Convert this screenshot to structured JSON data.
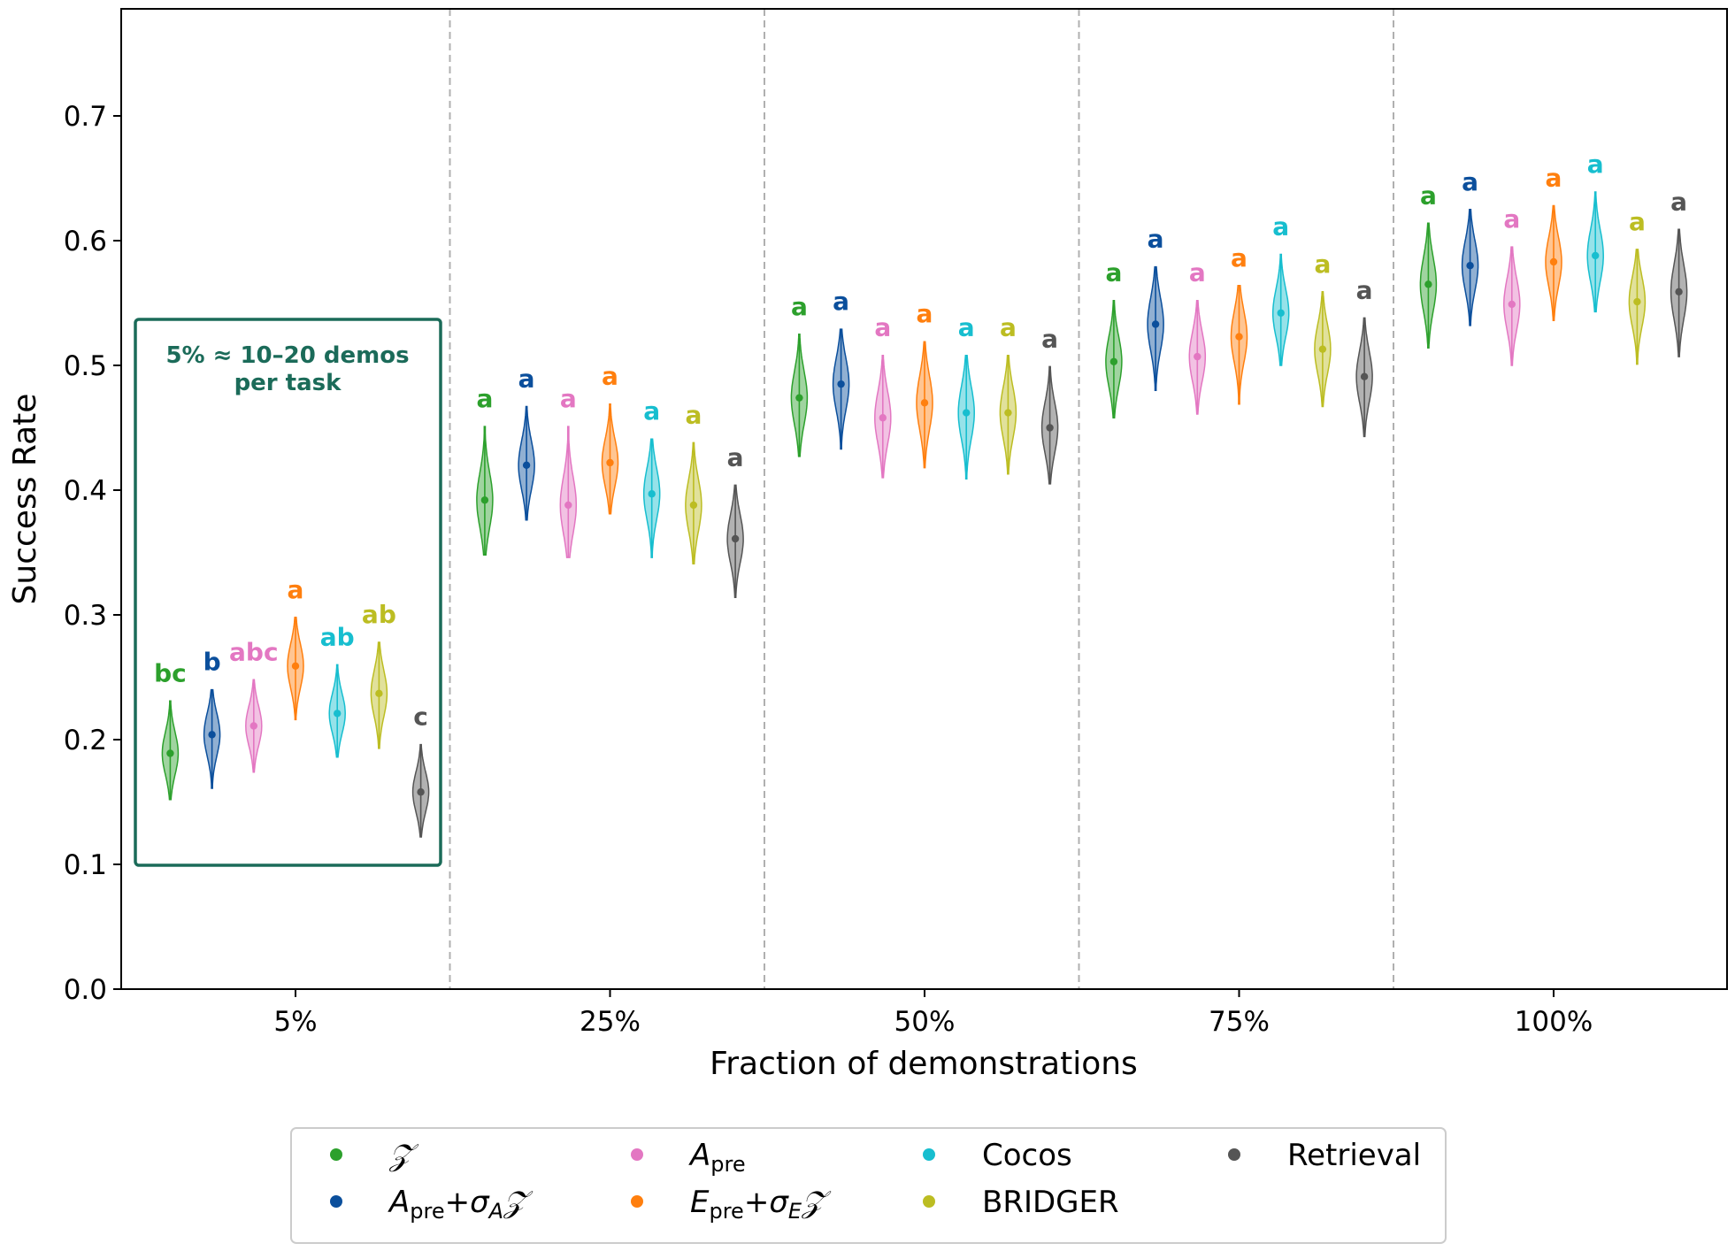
{
  "chart_data": {
    "type": "violin",
    "xlabel": "Fraction of demonstrations",
    "ylabel": "Success Rate",
    "ylim": [
      0.0,
      0.78
    ],
    "yticks": [
      "0.0",
      "0.1",
      "0.2",
      "0.3",
      "0.4",
      "0.5",
      "0.6",
      "0.7"
    ],
    "categories": [
      "5%",
      "25%",
      "50%",
      "75%",
      "100%"
    ],
    "grid": false,
    "legend_position": "bottom-center",
    "annotation": {
      "line1": "5% ≈ 10–20 demos",
      "line2": "per task",
      "color": "#1b6b59",
      "category": "5%"
    },
    "series": [
      {
        "name": "𝒵",
        "key": "z",
        "color": "#2ca02c",
        "median": [
          0.189,
          0.392,
          0.474,
          0.503,
          0.565
        ],
        "low": [
          0.152,
          0.348,
          0.427,
          0.458,
          0.514
        ],
        "high": [
          0.231,
          0.451,
          0.525,
          0.552,
          0.614
        ],
        "letters": [
          "bc",
          "a",
          "a",
          "a",
          "a"
        ]
      },
      {
        "name": "A_pre+σ_A𝒵",
        "key": "apre_sigma",
        "color": "#0b4f9c",
        "median": [
          0.204,
          0.42,
          0.485,
          0.533,
          0.58
        ],
        "low": [
          0.161,
          0.376,
          0.433,
          0.48,
          0.532
        ],
        "high": [
          0.24,
          0.467,
          0.529,
          0.579,
          0.625
        ],
        "letters": [
          "b",
          "a",
          "a",
          "a",
          "a"
        ]
      },
      {
        "name": "A_pre",
        "key": "apre",
        "color": "#e377c2",
        "median": [
          0.211,
          0.388,
          0.458,
          0.507,
          0.549
        ],
        "low": [
          0.174,
          0.346,
          0.41,
          0.461,
          0.5
        ],
        "high": [
          0.248,
          0.451,
          0.508,
          0.552,
          0.595
        ],
        "letters": [
          "abc",
          "a",
          "a",
          "a",
          "a"
        ]
      },
      {
        "name": "E_pre+σ_E𝒵",
        "key": "epre_sigma",
        "color": "#ff7f0e",
        "median": [
          0.259,
          0.422,
          0.47,
          0.523,
          0.583
        ],
        "low": [
          0.216,
          0.381,
          0.418,
          0.469,
          0.536
        ],
        "high": [
          0.298,
          0.469,
          0.519,
          0.564,
          0.628
        ],
        "letters": [
          "a",
          "a",
          "a",
          "a",
          "a"
        ]
      },
      {
        "name": "Cocos",
        "key": "cocos",
        "color": "#17becf",
        "median": [
          0.221,
          0.397,
          0.462,
          0.542,
          0.588
        ],
        "low": [
          0.186,
          0.346,
          0.409,
          0.5,
          0.543
        ],
        "high": [
          0.26,
          0.441,
          0.508,
          0.589,
          0.639
        ],
        "letters": [
          "ab",
          "a",
          "a",
          "a",
          "a"
        ]
      },
      {
        "name": "BRIDGER",
        "key": "bridger",
        "color": "#bcbd22",
        "median": [
          0.237,
          0.388,
          0.462,
          0.513,
          0.551
        ],
        "low": [
          0.193,
          0.341,
          0.413,
          0.467,
          0.501
        ],
        "high": [
          0.278,
          0.438,
          0.508,
          0.559,
          0.593
        ],
        "letters": [
          "ab",
          "a",
          "a",
          "a",
          "a"
        ]
      },
      {
        "name": "Retrieval",
        "key": "retrieval",
        "color": "#555555",
        "median": [
          0.158,
          0.361,
          0.45,
          0.491,
          0.559
        ],
        "low": [
          0.122,
          0.314,
          0.405,
          0.443,
          0.507
        ],
        "high": [
          0.196,
          0.404,
          0.499,
          0.538,
          0.609
        ],
        "letters": [
          "c",
          "a",
          "a",
          "a",
          "a"
        ]
      }
    ]
  }
}
